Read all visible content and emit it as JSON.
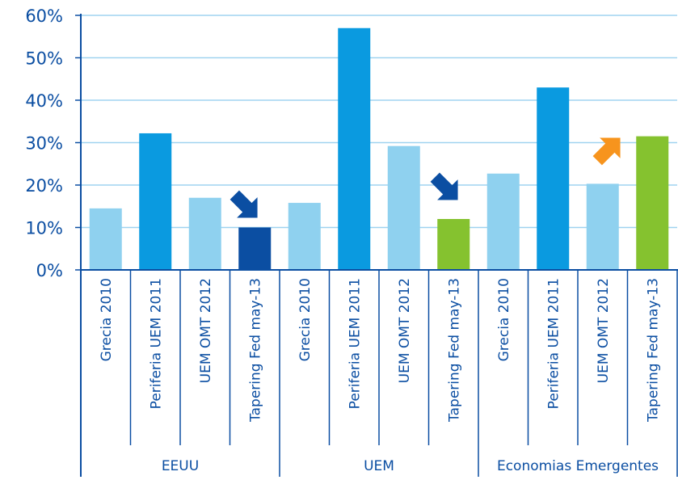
{
  "chart_data": {
    "type": "bar",
    "title": "",
    "xlabel": "",
    "ylabel": "",
    "ylim": [
      0,
      60
    ],
    "y_ticks": [
      "0%",
      "10%",
      "20%",
      "30%",
      "40%",
      "50%",
      "60%"
    ],
    "grid": true,
    "legend": "none",
    "categories": [
      "Grecia 2010",
      "Periferia UEM 2011",
      "UEM OMT 2012",
      "Tapering Fed may-13",
      "Grecia 2010",
      "Periferia UEM 2011",
      "UEM OMT 2012",
      "Tapering Fed may-13",
      "Grecia 2010",
      "Periferia UEM 2011",
      "UEM OMT 2012",
      "Tapering Fed may-13"
    ],
    "groups": [
      {
        "name": "EEUU",
        "count": 4
      },
      {
        "name": "UEM",
        "count": 4
      },
      {
        "name": "Economias Emergentes",
        "count": 4
      }
    ],
    "values": [
      14.5,
      32.2,
      17.0,
      10.0,
      15.8,
      57.0,
      29.2,
      12.0,
      22.7,
      43.0,
      20.3,
      31.5
    ],
    "bar_colors": [
      "#8fd1ef",
      "#0a9ae0",
      "#8fd1ef",
      "#0b4ea2",
      "#8fd1ef",
      "#0a9ae0",
      "#8fd1ef",
      "#85c22f",
      "#8fd1ef",
      "#0a9ae0",
      "#8fd1ef",
      "#85c22f"
    ],
    "annotations": [
      {
        "type": "arrow-down-right",
        "group": "EEUU",
        "color": "#0b4ea2"
      },
      {
        "type": "arrow-down-right",
        "group": "UEM",
        "color": "#0b4ea2"
      },
      {
        "type": "arrow-up-right",
        "group": "Economias Emergentes",
        "color": "#f7941d"
      }
    ],
    "colors": {
      "axis": "#0b4ea2",
      "grid": "#9fd3f0",
      "text": "#0b4ea2"
    }
  }
}
